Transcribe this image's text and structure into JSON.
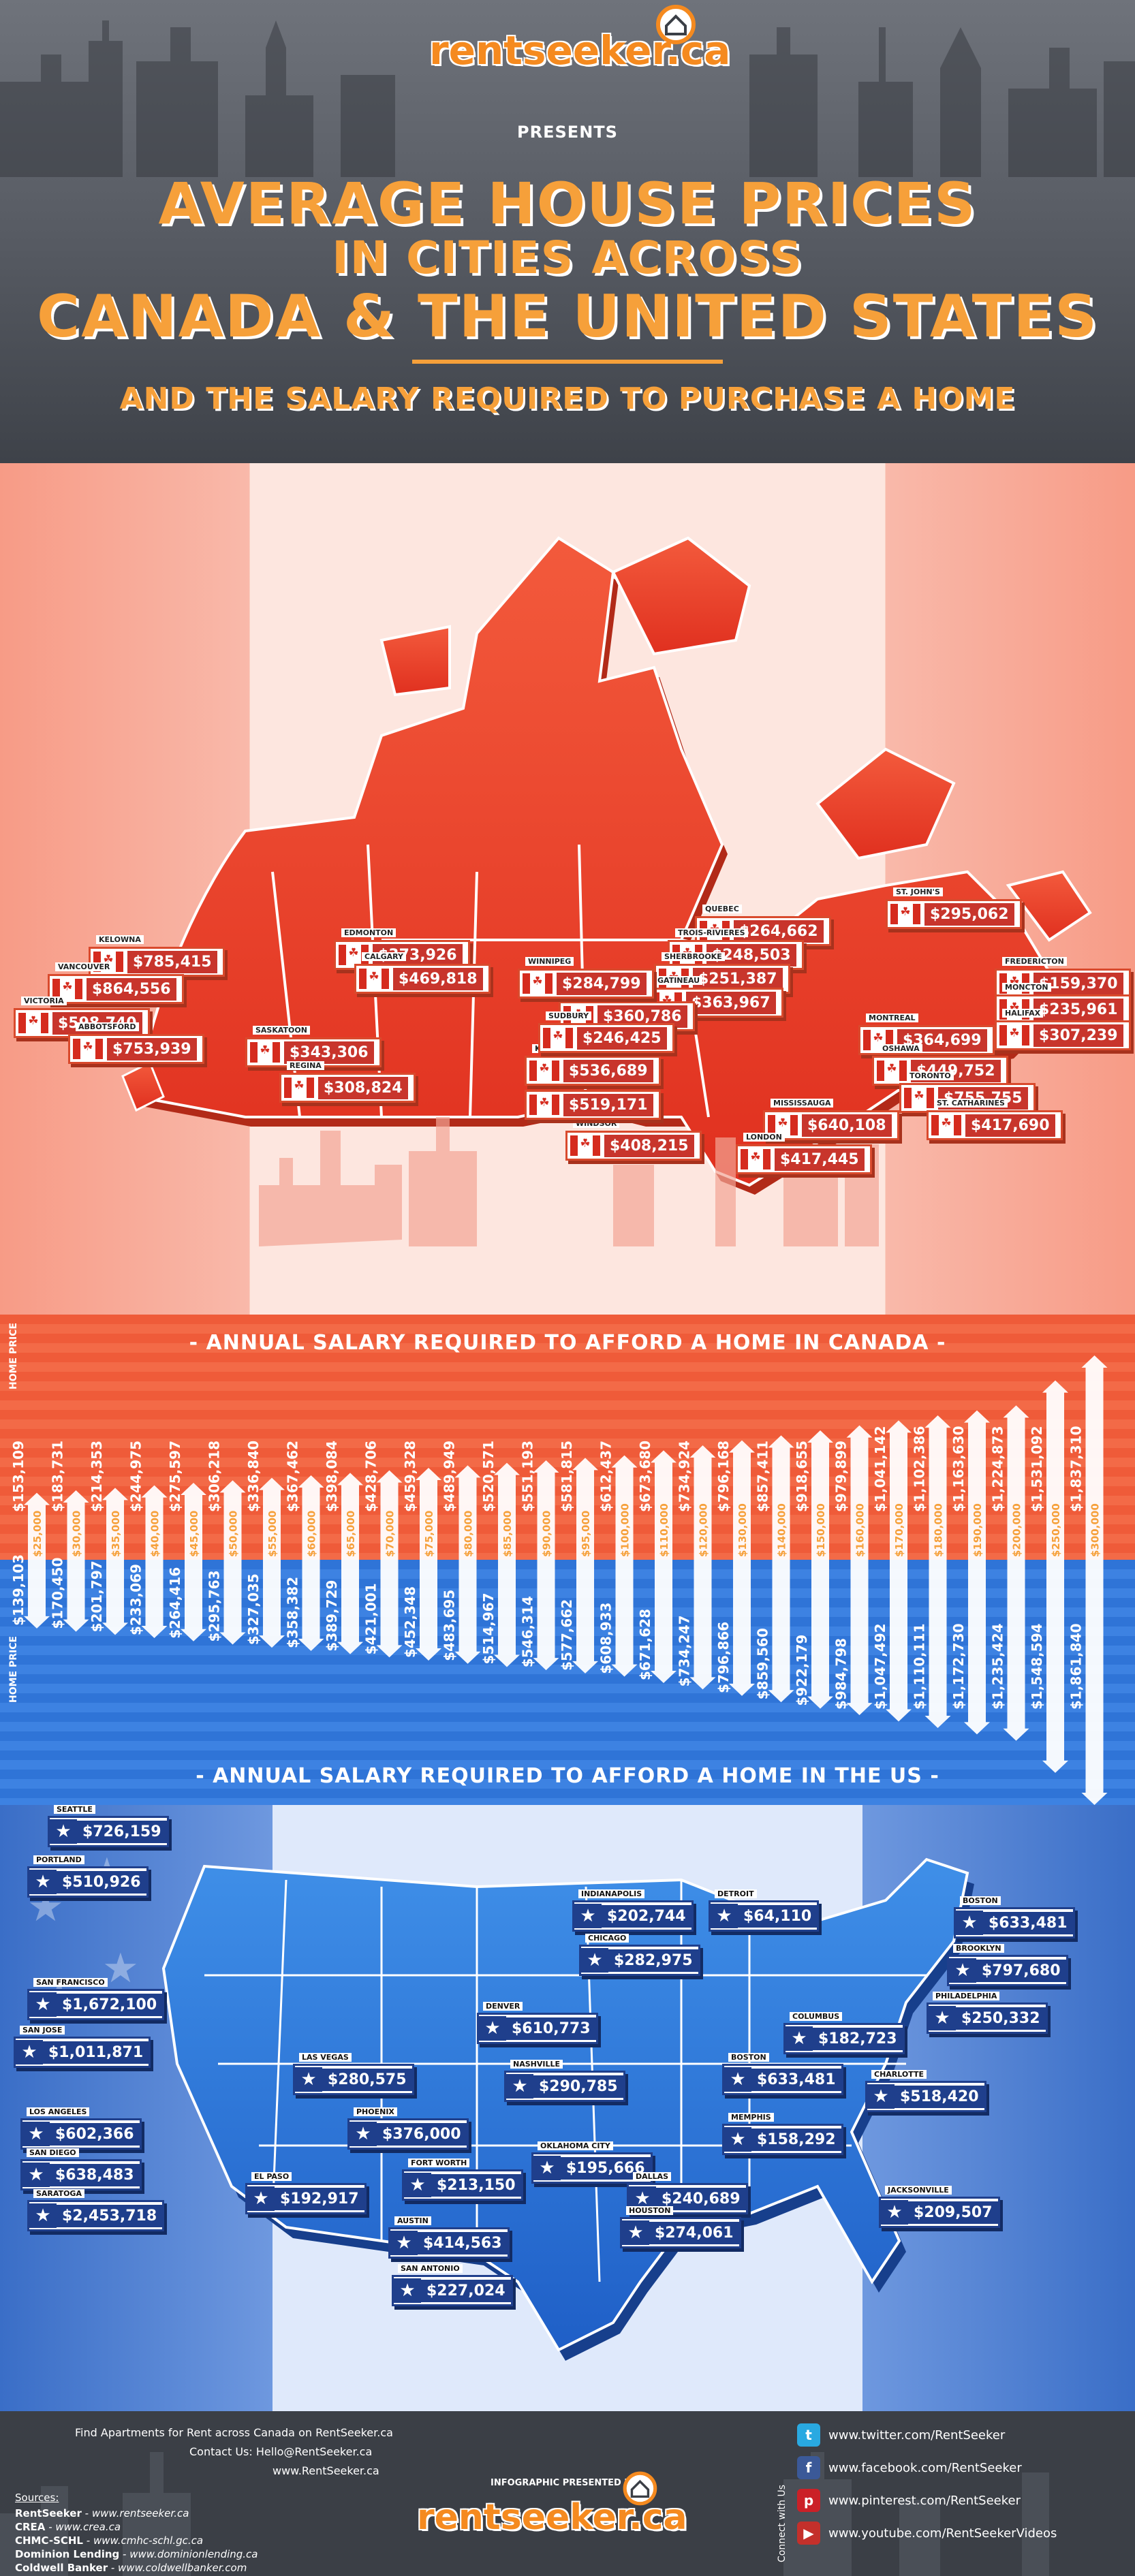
{
  "header": {
    "logo_text": "rentseeker.ca",
    "presents": "PRESENTS",
    "title": [
      "AVERAGE HOUSE PRICES",
      "IN CITIES ACROSS",
      "CANADA & THE UNITED STATES"
    ],
    "subtitle": "AND THE SALARY REQUIRED TO PURCHASE A HOME"
  },
  "canada": {
    "cities": [
      {
        "name": "ST. JOHN'S",
        "price": "$295,062"
      },
      {
        "name": "QUEBEC",
        "price": "$264,662"
      },
      {
        "name": "TROIS-RIVIERES",
        "price": "$248,503"
      },
      {
        "name": "SHERBROOKE",
        "price": "$251,387"
      },
      {
        "name": "GATINEAU",
        "price": "$363,967"
      },
      {
        "name": "OTTAWA",
        "price": "$360,786"
      },
      {
        "name": "MONTREAL",
        "price": "$364,699"
      },
      {
        "name": "FREDERICTON",
        "price": "$159,370"
      },
      {
        "name": "MONCTON",
        "price": "$235,961"
      },
      {
        "name": "HALIFAX",
        "price": "$307,239"
      },
      {
        "name": "OSHAWA",
        "price": "$449,752"
      },
      {
        "name": "TORONTO",
        "price": "$755,755"
      },
      {
        "name": "ST. CATHARINES",
        "price": "$417,690"
      },
      {
        "name": "MISSISSAUGA",
        "price": "$640,108"
      },
      {
        "name": "LONDON",
        "price": "$417,445"
      },
      {
        "name": "WINDSOR",
        "price": "$408,215"
      },
      {
        "name": "HAMILTON",
        "price": "$519,171"
      },
      {
        "name": "KITCHENER",
        "price": "$536,689"
      },
      {
        "name": "SUDBURY",
        "price": "$246,425"
      },
      {
        "name": "WINNIPEG",
        "price": "$284,799"
      },
      {
        "name": "EDMONTON",
        "price": "$373,926"
      },
      {
        "name": "CALGARY",
        "price": "$469,818"
      },
      {
        "name": "KELOWNA",
        "price": "$785,415"
      },
      {
        "name": "VANCOUVER",
        "price": "$864,556"
      },
      {
        "name": "VICTORIA",
        "price": "$598,740"
      },
      {
        "name": "ABBOTSFORD",
        "price": "$753,939"
      },
      {
        "name": "SASKATOON",
        "price": "$343,306"
      },
      {
        "name": "REGINA",
        "price": "$308,824"
      }
    ]
  },
  "bars": {
    "canada_banner": "- ANNUAL SALARY REQUIRED TO AFFORD A HOME IN CANADA -",
    "us_banner": "- ANNUAL SALARY REQUIRED TO AFFORD A HOME IN THE US -",
    "axis_label": "HOME PRICE",
    "salaries": [
      "$25,000",
      "$30,000",
      "$35,000",
      "$40,000",
      "$45,000",
      "$50,000",
      "$55,000",
      "$60,000",
      "$65,000",
      "$70,000",
      "$75,000",
      "$80,000",
      "$85,000",
      "$90,000",
      "$95,000",
      "$100,000",
      "$110,000",
      "$120,000",
      "$130,000",
      "$140,000",
      "$150,000",
      "$160,000",
      "$170,000",
      "$180,000",
      "$190,000",
      "$200,000",
      "$250,000",
      "$300,000"
    ],
    "canada_prices": [
      "$153,109",
      "$183,731",
      "$214,353",
      "$244,975",
      "$275,597",
      "$306,218",
      "$336,840",
      "$367,462",
      "$398,084",
      "$428,706",
      "$459,328",
      "$489,949",
      "$520,571",
      "$551,193",
      "$581,815",
      "$612,437",
      "$673,680",
      "$734,924",
      "$796,168",
      "$857,411",
      "$918,655",
      "$979,899",
      "$1,041,142",
      "$1,102,386",
      "$1,163,630",
      "$1,224,873",
      "$1,531,092",
      "$1,837,310"
    ],
    "us_prices": [
      "$139,103",
      "$170,450",
      "$201,797",
      "$233,069",
      "$264,416",
      "$295,763",
      "$327,035",
      "$358,382",
      "$389,729",
      "$421,001",
      "$452,348",
      "$483,695",
      "$514,967",
      "$546,314",
      "$577,662",
      "$608,933",
      "$671,628",
      "$734,247",
      "$796,866",
      "$859,560",
      "$922,179",
      "$984,798",
      "$1,047,492",
      "$1,110,111",
      "$1,172,730",
      "$1,235,424",
      "$1,548,594",
      "$1,861,840"
    ]
  },
  "usa": {
    "cities": [
      {
        "name": "SEATTLE",
        "price": "$726,159"
      },
      {
        "name": "PORTLAND",
        "price": "$510,926"
      },
      {
        "name": "SAN FRANCISCO",
        "price": "$1,672,100"
      },
      {
        "name": "SAN JOSE",
        "price": "$1,011,871"
      },
      {
        "name": "LOS ANGELES",
        "price": "$602,366"
      },
      {
        "name": "SAN DIEGO",
        "price": "$638,483"
      },
      {
        "name": "SARATOGA",
        "price": "$2,453,718"
      },
      {
        "name": "LAS VEGAS",
        "price": "$280,575"
      },
      {
        "name": "PHOENIX",
        "price": "$376,000"
      },
      {
        "name": "EL PASO",
        "price": "$192,917"
      },
      {
        "name": "FORT WORTH",
        "price": "$213,150"
      },
      {
        "name": "AUSTIN",
        "price": "$414,563"
      },
      {
        "name": "SAN ANTONIO",
        "price": "$227,024"
      },
      {
        "name": "DENVER",
        "price": "$610,773"
      },
      {
        "name": "NASHVILLE",
        "price": "$290,785"
      },
      {
        "name": "OKLAHOMA CITY",
        "price": "$195,666"
      },
      {
        "name": "DALLAS",
        "price": "$240,689"
      },
      {
        "name": "HOUSTON",
        "price": "$274,061"
      },
      {
        "name": "INDIANAPOLIS",
        "price": "$202,744"
      },
      {
        "name": "CHICAGO",
        "price": "$282,975"
      },
      {
        "name": "DETROIT",
        "price": "$64,110"
      },
      {
        "name": "COLUMBUS",
        "price": "$182,723"
      },
      {
        "name": "BOSTON",
        "price": "$633,481"
      },
      {
        "name": "MEMPHIS",
        "price": "$158,292"
      },
      {
        "name": "JACKSONVILLE",
        "price": "$209,507"
      },
      {
        "name": "CHARLOTTE",
        "price": "$518,420"
      },
      {
        "name": "PHILADELPHIA",
        "price": "$250,332"
      },
      {
        "name": "BROOKLYN",
        "price": "$797,680"
      },
      {
        "name": "BOSTON",
        "price": "$633,481"
      }
    ]
  },
  "footer": {
    "find_text": "Find Apartments for Rent across Canada on",
    "find_link": "RentSeeker.ca",
    "contact_text": "Contact Us:",
    "contact_link": "Hello@RentSeeker.ca",
    "site": "www.RentSeeker.ca",
    "presented_by": "INFOGRAPHIC PRESENTED BY",
    "logo_text": "rentseeker.ca",
    "sources_title": "Sources:",
    "sources": [
      {
        "name": "RentSeeker",
        "url": " - www.rentseeker.ca"
      },
      {
        "name": "CREA",
        "url": " - www.crea.ca"
      },
      {
        "name": "CHMC-SCHL",
        "url": " - www.cmhc-schl.gc.ca"
      },
      {
        "name": "Dominion Lending",
        "url": " - www.dominionlending.ca"
      },
      {
        "name": "Coldwell Banker",
        "url": " - www.coldwellbanker.com"
      }
    ],
    "connect": "Connect with Us",
    "social": [
      {
        "icon": "twitter-icon",
        "glyph": "t",
        "color": "#29a9e1",
        "url": "www.twitter.com/RentSeeker"
      },
      {
        "icon": "facebook-icon",
        "glyph": "f",
        "color": "#3b5998",
        "url": "www.facebook.com/RentSeeker"
      },
      {
        "icon": "pinterest-icon",
        "glyph": "p",
        "color": "#cb2027",
        "url": "www.pinterest.com/RentSeeker"
      },
      {
        "icon": "youtube-icon",
        "glyph": "▶",
        "color": "#c4302b",
        "url": "www.youtube.com/RentSeekerVideos"
      }
    ]
  }
}
